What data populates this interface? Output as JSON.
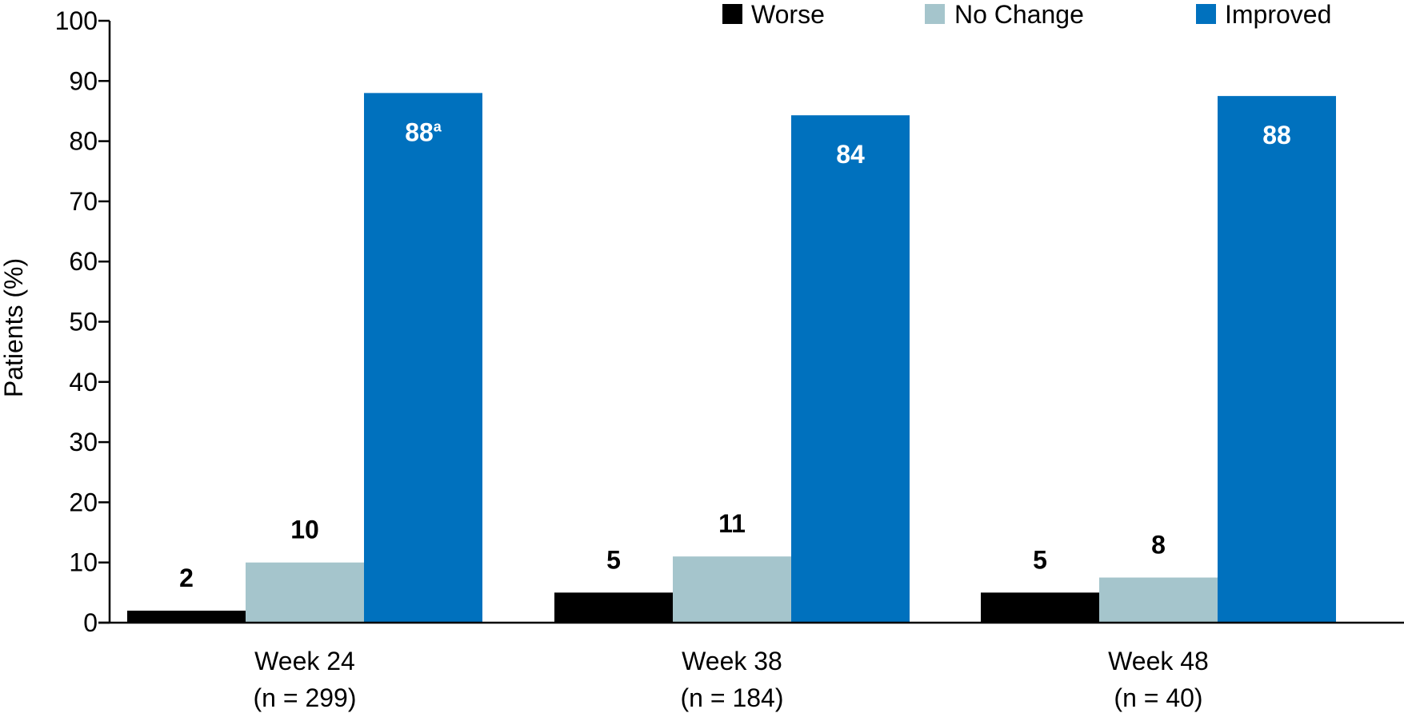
{
  "chart_data": {
    "type": "bar",
    "title": "",
    "xlabel": "",
    "ylabel": "Patients (%)",
    "ylim": [
      0,
      100
    ],
    "yticks": [
      0,
      10,
      20,
      30,
      40,
      50,
      60,
      70,
      80,
      90,
      100
    ],
    "grid": false,
    "legend_position": "top-right",
    "categories": [
      {
        "line1": "Week 24",
        "line2": "(n = 299)"
      },
      {
        "line1": "Week 38",
        "line2": "(n = 184)"
      },
      {
        "line1": "Week 48",
        "line2": "(n = 40)"
      }
    ],
    "series": [
      {
        "name": "Worse",
        "color": "#000000",
        "values": [
          2,
          5,
          5
        ],
        "labels": [
          "2",
          "5",
          "5"
        ],
        "label_color": "#000000",
        "label_position": "above"
      },
      {
        "name": "No Change",
        "color": "#a5c5cc",
        "values": [
          10,
          11,
          7.5
        ],
        "labels": [
          "10",
          "11",
          "8"
        ],
        "label_color": "#000000",
        "label_position": "above"
      },
      {
        "name": "Improved",
        "color": "#0071be",
        "values": [
          88,
          84.3,
          87.5
        ],
        "labels": [
          "88",
          "84",
          "88"
        ],
        "label_superscripts": [
          "a",
          "",
          ""
        ],
        "label_color": "#ffffff",
        "label_position": "inside-top"
      }
    ]
  }
}
